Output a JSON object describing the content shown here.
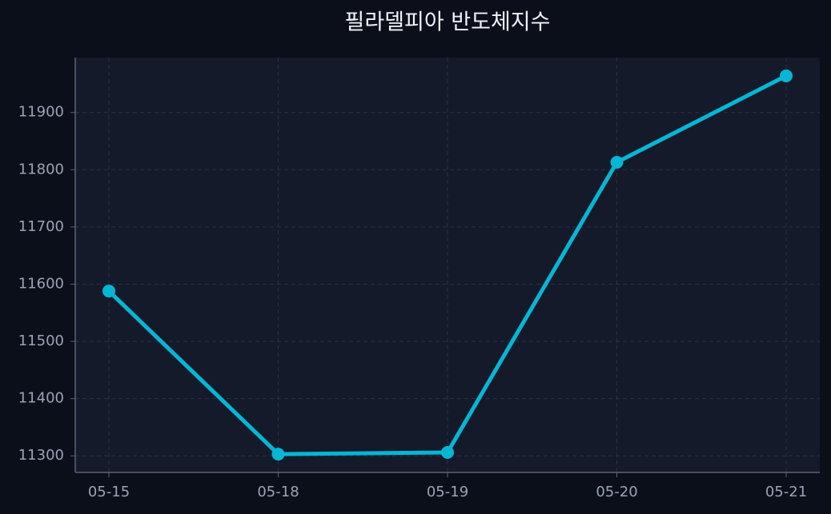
{
  "chart_data": {
    "type": "line",
    "title": "필라델피아 반도체지수",
    "categories": [
      "05-15",
      "05-18",
      "05-19",
      "05-20",
      "05-21"
    ],
    "series": [
      {
        "name": "필라델피아 반도체지수",
        "color": "#06b6d4",
        "values": [
          11588,
          11303,
          11306,
          11813,
          11964
        ]
      }
    ],
    "ylim": [
      11271,
      11996
    ],
    "yticks": [
      11300,
      11400,
      11500,
      11600,
      11700,
      11800,
      11900
    ],
    "grid": true
  }
}
